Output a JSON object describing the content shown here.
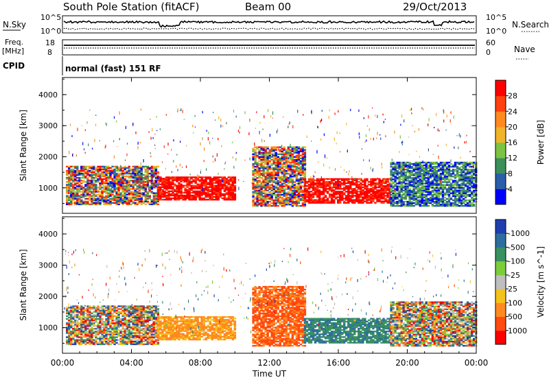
{
  "header": {
    "station": "South Pole Station (fitACF)",
    "beam": "Beam 00",
    "date": "29/Oct/2013"
  },
  "top_panels": {
    "nsky_label": "N.Sky",
    "nsky_tick_top": "10^5",
    "nsky_tick_bottom": "10^0",
    "nsearch_label": "N.Search",
    "freq_label_1": "Freq.",
    "freq_label_2": "[MHz]",
    "freq_tick_top": "18",
    "freq_tick_bottom": "8",
    "nave_label": "Nave",
    "nave_tick_top": "60",
    "nave_tick_bottom": "0",
    "cpid_label": "CPID",
    "cpid_value": "normal (fast) 151 RF"
  },
  "chart_data": [
    {
      "type": "heatmap",
      "title": "",
      "ylabel": "Slant Range [km]",
      "ylim": [
        180,
        4550
      ],
      "yticks": [
        "1000",
        "2000",
        "3000",
        "4000"
      ],
      "colorbar": {
        "label": "Power [dB]",
        "ticks": [
          "4",
          "8",
          "12",
          "16",
          "20",
          "24",
          "28"
        ],
        "colors": [
          "#0000ff",
          "#2a5ea8",
          "#3a8f5a",
          "#7cc243",
          "#f0b42a",
          "#ff8a1f",
          "#ff4010",
          "#ff0000"
        ]
      },
      "echo_regions": [
        {
          "t0": 0.2,
          "t1": 5.5,
          "r0": 450,
          "r1": 1700,
          "level": "mixed"
        },
        {
          "t0": 5.5,
          "t1": 10.0,
          "r0": 600,
          "r1": 1350,
          "level": "strong"
        },
        {
          "t0": 11.0,
          "t1": 14.0,
          "r0": 400,
          "r1": 2300,
          "level": "mixed"
        },
        {
          "t0": 14.0,
          "t1": 19.0,
          "r0": 500,
          "r1": 1300,
          "level": "strong"
        },
        {
          "t0": 19.0,
          "t1": 24.0,
          "r0": 400,
          "r1": 1800,
          "level": "weak"
        }
      ]
    },
    {
      "type": "heatmap",
      "title": "",
      "xlabel": "Time UT",
      "ylabel": "Slant Range [km]",
      "xticks": [
        "00:00",
        "04:00",
        "08:00",
        "12:00",
        "16:00",
        "20:00",
        "00:00"
      ],
      "xlim_hours": [
        0,
        24
      ],
      "ylim": [
        180,
        4550
      ],
      "yticks": [
        "1000",
        "2000",
        "3000",
        "4000"
      ],
      "colorbar": {
        "label": "Velocity [m s^-1]",
        "ticks": [
          "1000",
          "500",
          "100",
          "25",
          "-25",
          "-100",
          "-500",
          "-1000"
        ],
        "colors": [
          "#1f3fae",
          "#2d6e9e",
          "#3a9060",
          "#7ccd3c",
          "#bfbfbf",
          "#f5c21c",
          "#ff8a1f",
          "#ff4a10",
          "#ff0000"
        ]
      },
      "echo_regions": [
        {
          "t0": 0.2,
          "t1": 5.5,
          "r0": 450,
          "r1": 1700,
          "level": "mixed"
        },
        {
          "t0": 5.5,
          "t1": 10.0,
          "r0": 600,
          "r1": 1350,
          "level": "orange"
        },
        {
          "t0": 11.0,
          "t1": 14.0,
          "r0": 400,
          "r1": 2300,
          "level": "red"
        },
        {
          "t0": 14.0,
          "t1": 19.0,
          "r0": 500,
          "r1": 1300,
          "level": "green"
        },
        {
          "t0": 19.0,
          "t1": 24.0,
          "r0": 400,
          "r1": 1800,
          "level": "mixed"
        }
      ]
    }
  ]
}
